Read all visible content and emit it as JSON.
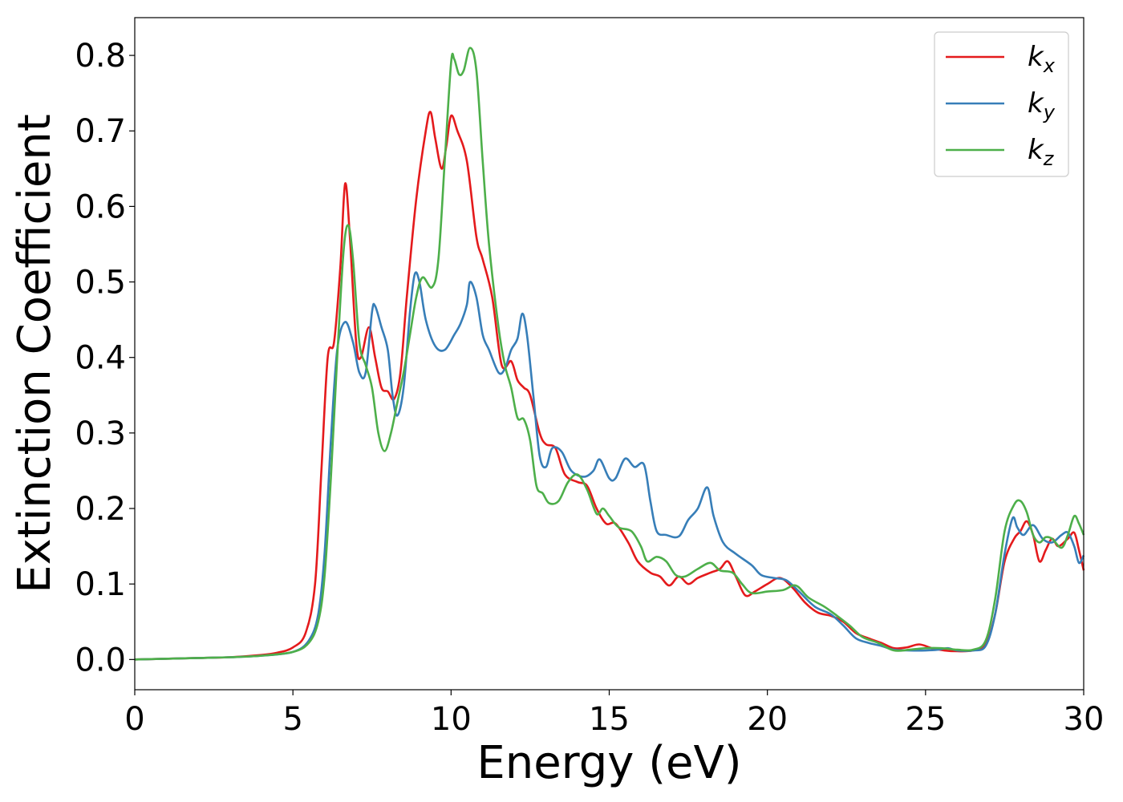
{
  "chart_data": {
    "type": "line",
    "xlabel": "Energy (eV)",
    "ylabel": "Extinction Coefficient",
    "xlim": [
      0,
      30
    ],
    "ylim": [
      -0.04,
      0.85
    ],
    "x_ticks": [
      0,
      5,
      10,
      15,
      20,
      25,
      30
    ],
    "x_tick_labels": [
      "0",
      "5",
      "10",
      "15",
      "20",
      "25",
      "30"
    ],
    "y_ticks": [
      0.0,
      0.1,
      0.2,
      0.3,
      0.4,
      0.5,
      0.6,
      0.7,
      0.8
    ],
    "y_tick_labels": [
      "0.0",
      "0.1",
      "0.2",
      "0.3",
      "0.4",
      "0.5",
      "0.6",
      "0.7",
      "0.8"
    ],
    "grid": false,
    "legend_position": "top-right",
    "series": [
      {
        "name": "k_x",
        "label_main": "k",
        "label_sub": "x",
        "color": "#e41a1c",
        "points": [
          [
            0,
            0.0
          ],
          [
            2,
            0.002
          ],
          [
            3,
            0.003
          ],
          [
            4,
            0.006
          ],
          [
            4.5,
            0.009
          ],
          [
            5,
            0.016
          ],
          [
            5.4,
            0.035
          ],
          [
            5.7,
            0.1
          ],
          [
            5.9,
            0.25
          ],
          [
            6.1,
            0.4
          ],
          [
            6.3,
            0.42
          ],
          [
            6.5,
            0.52
          ],
          [
            6.65,
            0.63
          ],
          [
            6.8,
            0.56
          ],
          [
            7.0,
            0.42
          ],
          [
            7.15,
            0.4
          ],
          [
            7.4,
            0.44
          ],
          [
            7.6,
            0.4
          ],
          [
            7.8,
            0.36
          ],
          [
            8.0,
            0.355
          ],
          [
            8.2,
            0.345
          ],
          [
            8.4,
            0.38
          ],
          [
            8.6,
            0.48
          ],
          [
            8.9,
            0.61
          ],
          [
            9.2,
            0.7
          ],
          [
            9.35,
            0.725
          ],
          [
            9.5,
            0.69
          ],
          [
            9.7,
            0.65
          ],
          [
            9.85,
            0.68
          ],
          [
            10.0,
            0.72
          ],
          [
            10.2,
            0.7
          ],
          [
            10.5,
            0.66
          ],
          [
            10.8,
            0.56
          ],
          [
            11.0,
            0.53
          ],
          [
            11.3,
            0.48
          ],
          [
            11.6,
            0.39
          ],
          [
            11.9,
            0.395
          ],
          [
            12.1,
            0.37
          ],
          [
            12.3,
            0.36
          ],
          [
            12.5,
            0.35
          ],
          [
            12.8,
            0.3
          ],
          [
            13.0,
            0.285
          ],
          [
            13.3,
            0.28
          ],
          [
            13.6,
            0.245
          ],
          [
            14.0,
            0.235
          ],
          [
            14.3,
            0.23
          ],
          [
            14.6,
            0.2
          ],
          [
            14.9,
            0.18
          ],
          [
            15.2,
            0.18
          ],
          [
            15.6,
            0.155
          ],
          [
            15.9,
            0.13
          ],
          [
            16.3,
            0.115
          ],
          [
            16.6,
            0.11
          ],
          [
            16.9,
            0.098
          ],
          [
            17.2,
            0.11
          ],
          [
            17.5,
            0.1
          ],
          [
            17.8,
            0.108
          ],
          [
            18.2,
            0.115
          ],
          [
            18.5,
            0.12
          ],
          [
            18.75,
            0.13
          ],
          [
            19.0,
            0.11
          ],
          [
            19.3,
            0.085
          ],
          [
            19.6,
            0.09
          ],
          [
            20.0,
            0.1
          ],
          [
            20.4,
            0.108
          ],
          [
            20.8,
            0.095
          ],
          [
            21.2,
            0.075
          ],
          [
            21.6,
            0.062
          ],
          [
            22.0,
            0.058
          ],
          [
            22.4,
            0.05
          ],
          [
            22.8,
            0.035
          ],
          [
            23.2,
            0.028
          ],
          [
            23.6,
            0.022
          ],
          [
            24.0,
            0.015
          ],
          [
            24.4,
            0.016
          ],
          [
            24.8,
            0.02
          ],
          [
            25.2,
            0.015
          ],
          [
            25.6,
            0.012
          ],
          [
            26.0,
            0.011
          ],
          [
            26.5,
            0.012
          ],
          [
            26.9,
            0.02
          ],
          [
            27.2,
            0.06
          ],
          [
            27.5,
            0.13
          ],
          [
            27.8,
            0.16
          ],
          [
            28.0,
            0.17
          ],
          [
            28.2,
            0.183
          ],
          [
            28.4,
            0.165
          ],
          [
            28.6,
            0.13
          ],
          [
            28.8,
            0.145
          ],
          [
            29.0,
            0.16
          ],
          [
            29.2,
            0.15
          ],
          [
            29.5,
            0.16
          ],
          [
            29.7,
            0.168
          ],
          [
            29.85,
            0.145
          ],
          [
            30.0,
            0.118
          ]
        ]
      },
      {
        "name": "k_y",
        "label_main": "k",
        "label_sub": "y",
        "color": "#377eb8",
        "points": [
          [
            0,
            0.0
          ],
          [
            2,
            0.002
          ],
          [
            3,
            0.003
          ],
          [
            4,
            0.005
          ],
          [
            5,
            0.01
          ],
          [
            5.5,
            0.025
          ],
          [
            5.8,
            0.06
          ],
          [
            6.0,
            0.14
          ],
          [
            6.2,
            0.29
          ],
          [
            6.4,
            0.41
          ],
          [
            6.65,
            0.447
          ],
          [
            6.9,
            0.42
          ],
          [
            7.1,
            0.38
          ],
          [
            7.3,
            0.38
          ],
          [
            7.5,
            0.46
          ],
          [
            7.6,
            0.468
          ],
          [
            7.8,
            0.44
          ],
          [
            8.0,
            0.41
          ],
          [
            8.15,
            0.35
          ],
          [
            8.3,
            0.323
          ],
          [
            8.5,
            0.36
          ],
          [
            8.7,
            0.46
          ],
          [
            8.85,
            0.51
          ],
          [
            9.0,
            0.5
          ],
          [
            9.2,
            0.45
          ],
          [
            9.5,
            0.415
          ],
          [
            9.8,
            0.41
          ],
          [
            10.1,
            0.43
          ],
          [
            10.3,
            0.445
          ],
          [
            10.5,
            0.47
          ],
          [
            10.6,
            0.5
          ],
          [
            10.8,
            0.48
          ],
          [
            11.0,
            0.43
          ],
          [
            11.2,
            0.41
          ],
          [
            11.5,
            0.38
          ],
          [
            11.7,
            0.385
          ],
          [
            11.9,
            0.41
          ],
          [
            12.1,
            0.425
          ],
          [
            12.25,
            0.458
          ],
          [
            12.4,
            0.43
          ],
          [
            12.6,
            0.35
          ],
          [
            12.8,
            0.27
          ],
          [
            13.0,
            0.255
          ],
          [
            13.2,
            0.28
          ],
          [
            13.5,
            0.275
          ],
          [
            13.8,
            0.25
          ],
          [
            14.2,
            0.242
          ],
          [
            14.5,
            0.25
          ],
          [
            14.7,
            0.265
          ],
          [
            15.0,
            0.24
          ],
          [
            15.2,
            0.24
          ],
          [
            15.5,
            0.266
          ],
          [
            15.8,
            0.255
          ],
          [
            16.1,
            0.258
          ],
          [
            16.3,
            0.21
          ],
          [
            16.5,
            0.17
          ],
          [
            16.8,
            0.165
          ],
          [
            17.2,
            0.163
          ],
          [
            17.5,
            0.185
          ],
          [
            17.8,
            0.2
          ],
          [
            18.1,
            0.228
          ],
          [
            18.3,
            0.19
          ],
          [
            18.6,
            0.155
          ],
          [
            19.0,
            0.14
          ],
          [
            19.5,
            0.125
          ],
          [
            19.8,
            0.112
          ],
          [
            20.2,
            0.108
          ],
          [
            20.6,
            0.105
          ],
          [
            21.0,
            0.09
          ],
          [
            21.5,
            0.07
          ],
          [
            22.0,
            0.06
          ],
          [
            22.4,
            0.045
          ],
          [
            22.8,
            0.028
          ],
          [
            23.2,
            0.022
          ],
          [
            23.6,
            0.018
          ],
          [
            24.0,
            0.013
          ],
          [
            24.5,
            0.012
          ],
          [
            25.0,
            0.012
          ],
          [
            25.4,
            0.013
          ],
          [
            25.7,
            0.015
          ],
          [
            26.0,
            0.012
          ],
          [
            26.5,
            0.012
          ],
          [
            26.9,
            0.018
          ],
          [
            27.2,
            0.06
          ],
          [
            27.5,
            0.14
          ],
          [
            27.75,
            0.187
          ],
          [
            27.9,
            0.175
          ],
          [
            28.1,
            0.165
          ],
          [
            28.4,
            0.178
          ],
          [
            28.7,
            0.16
          ],
          [
            29.0,
            0.155
          ],
          [
            29.3,
            0.165
          ],
          [
            29.5,
            0.168
          ],
          [
            29.7,
            0.15
          ],
          [
            29.85,
            0.128
          ],
          [
            30.0,
            0.138
          ]
        ]
      },
      {
        "name": "k_z",
        "label_main": "k",
        "label_sub": "z",
        "color": "#4daf4a",
        "points": [
          [
            0,
            0.0
          ],
          [
            2,
            0.002
          ],
          [
            3,
            0.003
          ],
          [
            4,
            0.005
          ],
          [
            5,
            0.01
          ],
          [
            5.5,
            0.022
          ],
          [
            5.8,
            0.05
          ],
          [
            6.0,
            0.11
          ],
          [
            6.2,
            0.24
          ],
          [
            6.4,
            0.4
          ],
          [
            6.6,
            0.54
          ],
          [
            6.75,
            0.575
          ],
          [
            6.9,
            0.53
          ],
          [
            7.1,
            0.42
          ],
          [
            7.3,
            0.39
          ],
          [
            7.5,
            0.36
          ],
          [
            7.7,
            0.3
          ],
          [
            7.9,
            0.276
          ],
          [
            8.1,
            0.3
          ],
          [
            8.3,
            0.34
          ],
          [
            8.5,
            0.38
          ],
          [
            8.7,
            0.43
          ],
          [
            8.9,
            0.48
          ],
          [
            9.1,
            0.506
          ],
          [
            9.4,
            0.493
          ],
          [
            9.6,
            0.53
          ],
          [
            9.8,
            0.66
          ],
          [
            10.0,
            0.79
          ],
          [
            10.1,
            0.795
          ],
          [
            10.25,
            0.775
          ],
          [
            10.4,
            0.78
          ],
          [
            10.6,
            0.81
          ],
          [
            10.8,
            0.78
          ],
          [
            11.0,
            0.66
          ],
          [
            11.2,
            0.55
          ],
          [
            11.5,
            0.44
          ],
          [
            11.7,
            0.39
          ],
          [
            11.9,
            0.36
          ],
          [
            12.1,
            0.32
          ],
          [
            12.3,
            0.318
          ],
          [
            12.5,
            0.29
          ],
          [
            12.7,
            0.23
          ],
          [
            12.9,
            0.22
          ],
          [
            13.1,
            0.207
          ],
          [
            13.4,
            0.21
          ],
          [
            13.7,
            0.235
          ],
          [
            14.0,
            0.245
          ],
          [
            14.3,
            0.225
          ],
          [
            14.6,
            0.193
          ],
          [
            14.8,
            0.2
          ],
          [
            15.0,
            0.19
          ],
          [
            15.3,
            0.175
          ],
          [
            15.7,
            0.17
          ],
          [
            16.0,
            0.15
          ],
          [
            16.2,
            0.13
          ],
          [
            16.5,
            0.136
          ],
          [
            16.8,
            0.13
          ],
          [
            17.1,
            0.112
          ],
          [
            17.4,
            0.11
          ],
          [
            17.8,
            0.12
          ],
          [
            18.2,
            0.128
          ],
          [
            18.5,
            0.118
          ],
          [
            18.9,
            0.115
          ],
          [
            19.2,
            0.1
          ],
          [
            19.5,
            0.088
          ],
          [
            20.0,
            0.09
          ],
          [
            20.5,
            0.092
          ],
          [
            20.9,
            0.098
          ],
          [
            21.3,
            0.082
          ],
          [
            21.8,
            0.07
          ],
          [
            22.2,
            0.058
          ],
          [
            22.6,
            0.045
          ],
          [
            23.0,
            0.03
          ],
          [
            23.5,
            0.022
          ],
          [
            24.0,
            0.012
          ],
          [
            24.5,
            0.013
          ],
          [
            25.0,
            0.015
          ],
          [
            25.5,
            0.015
          ],
          [
            26.0,
            0.013
          ],
          [
            26.5,
            0.013
          ],
          [
            26.9,
            0.025
          ],
          [
            27.2,
            0.08
          ],
          [
            27.5,
            0.17
          ],
          [
            27.8,
            0.205
          ],
          [
            28.0,
            0.21
          ],
          [
            28.2,
            0.195
          ],
          [
            28.4,
            0.165
          ],
          [
            28.6,
            0.155
          ],
          [
            28.8,
            0.162
          ],
          [
            29.0,
            0.16
          ],
          [
            29.3,
            0.148
          ],
          [
            29.5,
            0.165
          ],
          [
            29.7,
            0.19
          ],
          [
            29.85,
            0.18
          ],
          [
            30.0,
            0.165
          ]
        ]
      }
    ]
  }
}
